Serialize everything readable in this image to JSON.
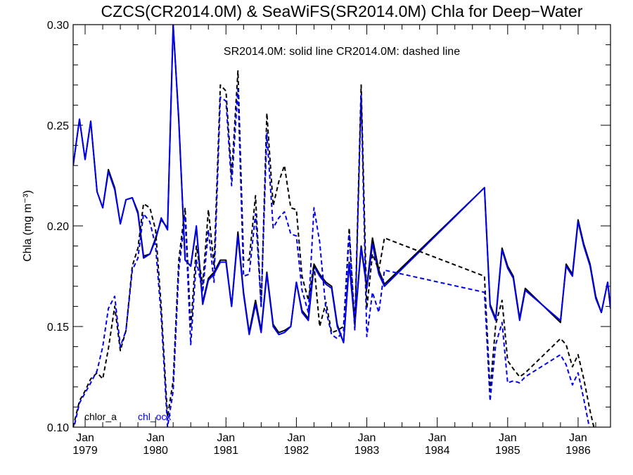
{
  "chart_data": {
    "type": "line",
    "title": "CZCS(CR2014.0M) & SeaWiFS(SR2014.0M)  Chla for Deep−Water",
    "note": "SR2014.0M: solid line   CR2014.0M: dashed line",
    "ylabel": "Chla (mg m⁻³)",
    "ylim": [
      0.1,
      0.3
    ],
    "xlim": [
      1978.83,
      1986.46
    ],
    "yticks": [
      "0.10",
      "0.15",
      "0.20",
      "0.25",
      "0.30"
    ],
    "xticks": [
      {
        "year": 1979,
        "line1": "Jan",
        "line2": "1979"
      },
      {
        "year": 1980,
        "line1": "Jan",
        "line2": "1980"
      },
      {
        "year": 1981,
        "line1": "Jan",
        "line2": "1981"
      },
      {
        "year": 1982,
        "line1": "Jan",
        "line2": "1982"
      },
      {
        "year": 1983,
        "line1": "Jan",
        "line2": "1983"
      },
      {
        "year": 1984,
        "line1": "Jan",
        "line2": "1984"
      },
      {
        "year": 1985,
        "line1": "Jan",
        "line2": "1985"
      },
      {
        "year": 1986,
        "line1": "Jan",
        "line2": "1986"
      }
    ],
    "legend": [
      {
        "label": "chlor_a",
        "color": "#000000"
      },
      {
        "label": "chl_ocx",
        "color": "#0000ee"
      }
    ],
    "series": [
      {
        "name": "chlor_a SR2014.0M",
        "color": "#000000",
        "dash": false,
        "x": [
          1978.83,
          1978.92,
          1979.0,
          1979.08,
          1979.17,
          1979.25,
          1979.33,
          1979.42,
          1979.5,
          1979.58,
          1979.67,
          1979.75,
          1979.83,
          1979.92,
          1980.0,
          1980.08,
          1980.17,
          1980.25,
          1980.33,
          1980.42,
          1980.5,
          1980.58,
          1980.67,
          1980.75,
          1980.83,
          1980.92,
          1981.0,
          1981.08,
          1981.17,
          1981.25,
          1981.33,
          1981.42,
          1981.5,
          1981.58,
          1981.67,
          1981.75,
          1981.83,
          1981.92,
          1982.0,
          1982.08,
          1982.17,
          1982.25,
          1982.33,
          1982.42,
          1982.5,
          1982.58,
          1982.67,
          1982.75,
          1982.83,
          1982.92,
          1983.0,
          1983.08,
          1983.17,
          1983.25,
          1984.67,
          1984.75,
          1984.83,
          1984.92,
          1985.0,
          1985.08,
          1985.17,
          1985.25,
          1985.75,
          1985.83,
          1985.92,
          1986.0,
          1986.08,
          1986.17,
          1986.25,
          1986.33,
          1986.42,
          1986.46
        ],
        "y": [
          0.23,
          0.253,
          0.233,
          0.252,
          0.217,
          0.209,
          0.228,
          0.219,
          0.201,
          0.213,
          0.214,
          0.207,
          0.185,
          0.186,
          0.194,
          0.203,
          0.199,
          0.3,
          0.252,
          0.183,
          0.18,
          0.199,
          0.162,
          0.174,
          0.177,
          0.183,
          0.183,
          0.16,
          0.197,
          0.167,
          0.147,
          0.163,
          0.148,
          0.177,
          0.151,
          0.147,
          0.148,
          0.15,
          0.172,
          0.158,
          0.154,
          0.181,
          0.176,
          0.172,
          0.17,
          0.151,
          0.142,
          0.182,
          0.152,
          0.19,
          0.17,
          0.194,
          0.178,
          0.171,
          0.219,
          0.161,
          0.154,
          0.189,
          0.18,
          0.175,
          0.154,
          0.169,
          0.152,
          0.181,
          0.176,
          0.203,
          0.191,
          0.181,
          0.165,
          0.157,
          0.172,
          0.159
        ]
      },
      {
        "name": "chl_ocx SR2014.0M",
        "color": "#0000ee",
        "dash": false,
        "x": [
          1978.83,
          1978.92,
          1979.0,
          1979.08,
          1979.17,
          1979.25,
          1979.33,
          1979.42,
          1979.5,
          1979.58,
          1979.67,
          1979.75,
          1979.83,
          1979.92,
          1980.0,
          1980.08,
          1980.17,
          1980.25,
          1980.33,
          1980.42,
          1980.5,
          1980.58,
          1980.67,
          1980.75,
          1980.83,
          1980.92,
          1981.0,
          1981.08,
          1981.17,
          1981.25,
          1981.33,
          1981.42,
          1981.5,
          1981.58,
          1981.67,
          1981.75,
          1981.83,
          1981.92,
          1982.0,
          1982.08,
          1982.17,
          1982.25,
          1982.33,
          1982.42,
          1982.5,
          1982.58,
          1982.67,
          1982.75,
          1982.83,
          1982.92,
          1983.0,
          1983.08,
          1983.17,
          1983.25,
          1984.67,
          1984.75,
          1984.83,
          1984.92,
          1985.0,
          1985.08,
          1985.17,
          1985.25,
          1985.75,
          1985.83,
          1985.92,
          1986.0,
          1986.08,
          1986.17,
          1986.25,
          1986.33,
          1986.42,
          1986.46
        ],
        "y": [
          0.23,
          0.253,
          0.233,
          0.252,
          0.217,
          0.209,
          0.227,
          0.218,
          0.201,
          0.213,
          0.214,
          0.206,
          0.184,
          0.186,
          0.193,
          0.204,
          0.198,
          0.3,
          0.253,
          0.183,
          0.18,
          0.2,
          0.161,
          0.173,
          0.176,
          0.182,
          0.182,
          0.16,
          0.195,
          0.166,
          0.146,
          0.161,
          0.147,
          0.176,
          0.15,
          0.146,
          0.147,
          0.15,
          0.172,
          0.157,
          0.153,
          0.18,
          0.175,
          0.171,
          0.169,
          0.15,
          0.142,
          0.181,
          0.151,
          0.189,
          0.169,
          0.191,
          0.176,
          0.17,
          0.219,
          0.16,
          0.153,
          0.188,
          0.179,
          0.174,
          0.153,
          0.168,
          0.153,
          0.18,
          0.175,
          0.202,
          0.19,
          0.18,
          0.164,
          0.157,
          0.172,
          0.159
        ]
      },
      {
        "name": "chlor_a CR2014.0M",
        "color": "#000000",
        "dash": true,
        "x": [
          1978.83,
          1978.92,
          1979.0,
          1979.08,
          1979.17,
          1979.25,
          1979.33,
          1979.42,
          1979.5,
          1979.58,
          1979.67,
          1979.75,
          1979.83,
          1979.92,
          1980.0,
          1980.08,
          1980.17,
          1980.25,
          1980.33,
          1980.42,
          1980.5,
          1980.58,
          1980.67,
          1980.75,
          1980.83,
          1980.92,
          1981.0,
          1981.08,
          1981.17,
          1981.25,
          1981.33,
          1981.42,
          1981.5,
          1981.58,
          1981.67,
          1981.75,
          1981.83,
          1981.92,
          1982.0,
          1982.08,
          1982.17,
          1982.25,
          1982.33,
          1982.42,
          1982.5,
          1982.58,
          1982.67,
          1982.75,
          1982.83,
          1982.92,
          1983.0,
          1983.08,
          1983.17,
          1983.25,
          1984.67,
          1984.75,
          1984.83,
          1984.92,
          1985.0,
          1985.08,
          1985.17,
          1985.25,
          1985.75,
          1985.83,
          1985.92,
          1986.0,
          1986.08,
          1986.17,
          1986.25
        ],
        "y": [
          0.1,
          0.113,
          0.118,
          0.124,
          0.127,
          0.124,
          0.139,
          0.16,
          0.138,
          0.148,
          0.18,
          0.189,
          0.211,
          0.209,
          0.198,
          0.16,
          0.105,
          0.123,
          0.183,
          0.209,
          0.149,
          0.19,
          0.171,
          0.208,
          0.18,
          0.27,
          0.267,
          0.225,
          0.277,
          0.183,
          0.183,
          0.215,
          0.16,
          0.256,
          0.21,
          0.222,
          0.23,
          0.209,
          0.208,
          0.175,
          0.163,
          0.181,
          0.15,
          0.162,
          0.147,
          0.148,
          0.15,
          0.199,
          0.15,
          0.27,
          0.159,
          0.186,
          0.178,
          0.194,
          0.175,
          0.118,
          0.151,
          0.163,
          0.133,
          0.129,
          0.125,
          0.127,
          0.144,
          0.141,
          0.13,
          0.136,
          0.124,
          0.108,
          0.096
        ]
      },
      {
        "name": "chl_ocx CR2014.0M",
        "color": "#0000ee",
        "dash": true,
        "x": [
          1978.83,
          1978.92,
          1979.0,
          1979.08,
          1979.17,
          1979.25,
          1979.33,
          1979.42,
          1979.5,
          1979.58,
          1979.67,
          1979.75,
          1979.83,
          1979.92,
          1980.0,
          1980.08,
          1980.17,
          1980.25,
          1980.33,
          1980.42,
          1980.5,
          1980.58,
          1980.67,
          1980.75,
          1980.83,
          1980.92,
          1981.0,
          1981.08,
          1981.17,
          1981.25,
          1981.33,
          1981.42,
          1981.5,
          1981.58,
          1981.67,
          1981.75,
          1981.83,
          1981.92,
          1982.0,
          1982.08,
          1982.17,
          1982.25,
          1982.33,
          1982.42,
          1982.5,
          1982.58,
          1982.67,
          1982.75,
          1982.83,
          1982.92,
          1983.0,
          1983.08,
          1983.17,
          1983.25,
          1984.67,
          1984.75,
          1984.83,
          1984.92,
          1985.0,
          1985.08,
          1985.17,
          1985.25,
          1985.75,
          1985.83,
          1985.92,
          1986.0,
          1986.08,
          1986.17
        ],
        "y": [
          0.098,
          0.112,
          0.117,
          0.122,
          0.128,
          0.14,
          0.159,
          0.165,
          0.14,
          0.148,
          0.178,
          0.184,
          0.206,
          0.202,
          0.19,
          0.155,
          0.1,
          0.118,
          0.178,
          0.205,
          0.141,
          0.183,
          0.167,
          0.198,
          0.172,
          0.264,
          0.262,
          0.22,
          0.268,
          0.175,
          0.176,
          0.206,
          0.16,
          0.246,
          0.199,
          0.204,
          0.207,
          0.196,
          0.195,
          0.168,
          0.157,
          0.209,
          0.192,
          0.158,
          0.146,
          0.144,
          0.148,
          0.196,
          0.148,
          0.265,
          0.145,
          0.167,
          0.157,
          0.178,
          0.167,
          0.113,
          0.141,
          0.152,
          0.122,
          0.123,
          0.122,
          0.125,
          0.136,
          0.131,
          0.121,
          0.127,
          0.114,
          0.098
        ]
      }
    ]
  }
}
